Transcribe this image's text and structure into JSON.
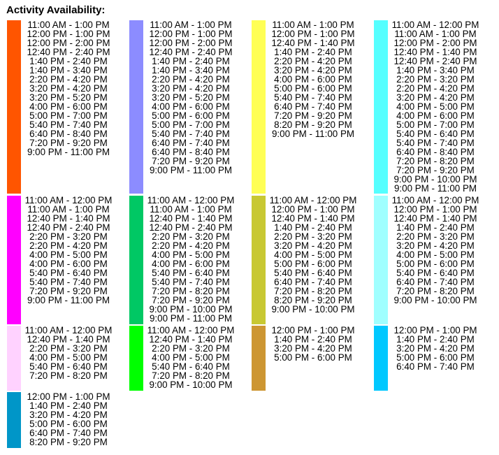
{
  "title": "Activity Availability:",
  "rows": [
    {
      "cells": [
        {
          "color": "#ff5500",
          "times": [
            "11:00 AM - 1:00 PM",
            "12:00 PM - 1:00 PM",
            "12:00 PM - 2:00 PM",
            "12:40 PM - 2:40 PM",
            "1:40 PM - 2:40 PM",
            "1:40 PM - 3:40 PM",
            "2:20 PM - 4:20 PM",
            "3:20 PM - 4:20 PM",
            "3:20 PM - 5:20 PM",
            "4:00 PM - 6:00 PM",
            "5:00 PM - 7:00 PM",
            "5:40 PM - 7:40 PM",
            "6:40 PM - 8:40 PM",
            "7:20 PM - 9:20 PM",
            "9:00 PM - 11:00 PM"
          ]
        },
        {
          "color": "#8c8cff",
          "times": [
            "11:00 AM - 1:00 PM",
            "12:00 PM - 1:00 PM",
            "12:00 PM - 2:00 PM",
            "12:40 PM - 2:40 PM",
            "1:40 PM - 2:40 PM",
            "1:40 PM - 3:40 PM",
            "2:20 PM - 4:20 PM",
            "3:20 PM - 4:20 PM",
            "3:20 PM - 5:20 PM",
            "4:00 PM - 6:00 PM",
            "5:00 PM - 6:00 PM",
            "5:00 PM - 7:00 PM",
            "5:40 PM - 7:40 PM",
            "6:40 PM - 7:40 PM",
            "6:40 PM - 8:40 PM",
            "7:20 PM - 9:20 PM",
            "9:00 PM - 11:00 PM"
          ]
        },
        {
          "color": "#ffff55",
          "times": [
            "11:00 AM - 1:00 PM",
            "12:00 PM - 1:00 PM",
            "12:40 PM - 1:40 PM",
            "1:40 PM - 2:40 PM",
            "2:20 PM - 4:20 PM",
            "3:20 PM - 4:20 PM",
            "4:00 PM - 6:00 PM",
            "5:00 PM - 6:00 PM",
            "5:40 PM - 7:40 PM",
            "6:40 PM - 7:40 PM",
            "7:20 PM - 9:20 PM",
            "8:20 PM - 9:20 PM",
            "9:00 PM - 11:00 PM"
          ]
        },
        {
          "color": "#55ffff",
          "times": [
            "11:00 AM - 12:00 PM",
            "11:00 AM - 1:00 PM",
            "12:00 PM - 2:00 PM",
            "12:40 PM - 1:40 PM",
            "12:40 PM - 2:40 PM",
            "1:40 PM - 3:40 PM",
            "2:20 PM - 3:20 PM",
            "2:20 PM - 4:20 PM",
            "3:20 PM - 4:20 PM",
            "4:00 PM - 5:00 PM",
            "4:00 PM - 6:00 PM",
            "5:00 PM - 7:00 PM",
            "5:40 PM - 6:40 PM",
            "5:40 PM - 7:40 PM",
            "6:40 PM - 8:40 PM",
            "7:20 PM - 8:20 PM",
            "7:20 PM - 9:20 PM",
            "9:00 PM - 10:00 PM",
            "9:00 PM - 11:00 PM"
          ]
        }
      ]
    },
    {
      "cells": [
        {
          "color": "#ff00ff",
          "times": [
            "11:00 AM - 12:00 PM",
            "11:00 AM - 1:00 PM",
            "12:40 PM - 1:40 PM",
            "12:40 PM - 2:40 PM",
            "2:20 PM - 3:20 PM",
            "2:20 PM - 4:20 PM",
            "4:00 PM - 5:00 PM",
            "4:00 PM - 6:00 PM",
            "5:40 PM - 6:40 PM",
            "5:40 PM - 7:40 PM",
            "7:20 PM - 9:20 PM",
            "9:00 PM - 11:00 PM"
          ]
        },
        {
          "color": "#00c864",
          "times": [
            "11:00 AM - 12:00 PM",
            "11:00 AM - 1:00 PM",
            "12:40 PM - 1:40 PM",
            "12:40 PM - 2:40 PM",
            "2:20 PM - 3:20 PM",
            "2:20 PM - 4:20 PM",
            "4:00 PM - 5:00 PM",
            "4:00 PM - 6:00 PM",
            "5:40 PM - 6:40 PM",
            "5:40 PM - 7:40 PM",
            "7:20 PM - 8:20 PM",
            "7:20 PM - 9:20 PM",
            "9:00 PM - 10:00 PM",
            "9:00 PM - 11:00 PM"
          ]
        },
        {
          "color": "#c8c832",
          "times": [
            "11:00 AM - 12:00 PM",
            "12:00 PM - 1:00 PM",
            "12:40 PM - 1:40 PM",
            "1:40 PM - 2:40 PM",
            "2:20 PM - 3:20 PM",
            "3:20 PM - 4:20 PM",
            "4:00 PM - 5:00 PM",
            "5:00 PM - 6:00 PM",
            "5:40 PM - 6:40 PM",
            "6:40 PM - 7:40 PM",
            "7:20 PM - 8:20 PM",
            "8:20 PM - 9:20 PM",
            "9:00 PM - 10:00 PM"
          ]
        },
        {
          "color": "#a0ffff",
          "times": [
            "11:00 AM - 12:00 PM",
            "12:00 PM - 1:00 PM",
            "12:40 PM - 1:40 PM",
            "1:40 PM - 2:40 PM",
            "2:20 PM - 3:20 PM",
            "3:20 PM - 4:20 PM",
            "4:00 PM - 5:00 PM",
            "5:00 PM - 6:00 PM",
            "5:40 PM - 6:40 PM",
            "6:40 PM - 7:40 PM",
            "7:20 PM - 8:20 PM",
            "9:00 PM - 10:00 PM"
          ]
        }
      ]
    },
    {
      "cells": [
        {
          "color": "#ffd2ff",
          "times": [
            "11:00 AM - 12:00 PM",
            "12:40 PM - 1:40 PM",
            "2:20 PM - 3:20 PM",
            "4:00 PM - 5:00 PM",
            "5:40 PM - 6:40 PM",
            "7:20 PM - 8:20 PM"
          ]
        },
        {
          "color": "#00ff00",
          "times": [
            "11:00 AM - 12:00 PM",
            "12:40 PM - 1:40 PM",
            "2:20 PM - 3:20 PM",
            "4:00 PM - 5:00 PM",
            "5:40 PM - 6:40 PM",
            "7:20 PM - 8:20 PM",
            "9:00 PM - 10:00 PM"
          ]
        },
        {
          "color": "#cd9632",
          "times": [
            "12:00 PM - 1:00 PM",
            "1:40 PM - 2:40 PM",
            "3:20 PM - 4:20 PM",
            "5:00 PM - 6:00 PM"
          ]
        },
        {
          "color": "#00c8ff",
          "times": [
            "12:00 PM - 1:00 PM",
            "1:40 PM - 2:40 PM",
            "3:20 PM - 4:20 PM",
            "5:00 PM - 6:00 PM",
            "6:40 PM - 7:40 PM"
          ]
        }
      ]
    },
    {
      "cells": [
        {
          "color": "#0096c8",
          "times": [
            "12:00 PM - 1:00 PM",
            "1:40 PM - 2:40 PM",
            "3:20 PM - 4:20 PM",
            "5:00 PM - 6:00 PM",
            "6:40 PM - 7:40 PM",
            "8:20 PM - 9:20 PM"
          ]
        }
      ]
    }
  ]
}
